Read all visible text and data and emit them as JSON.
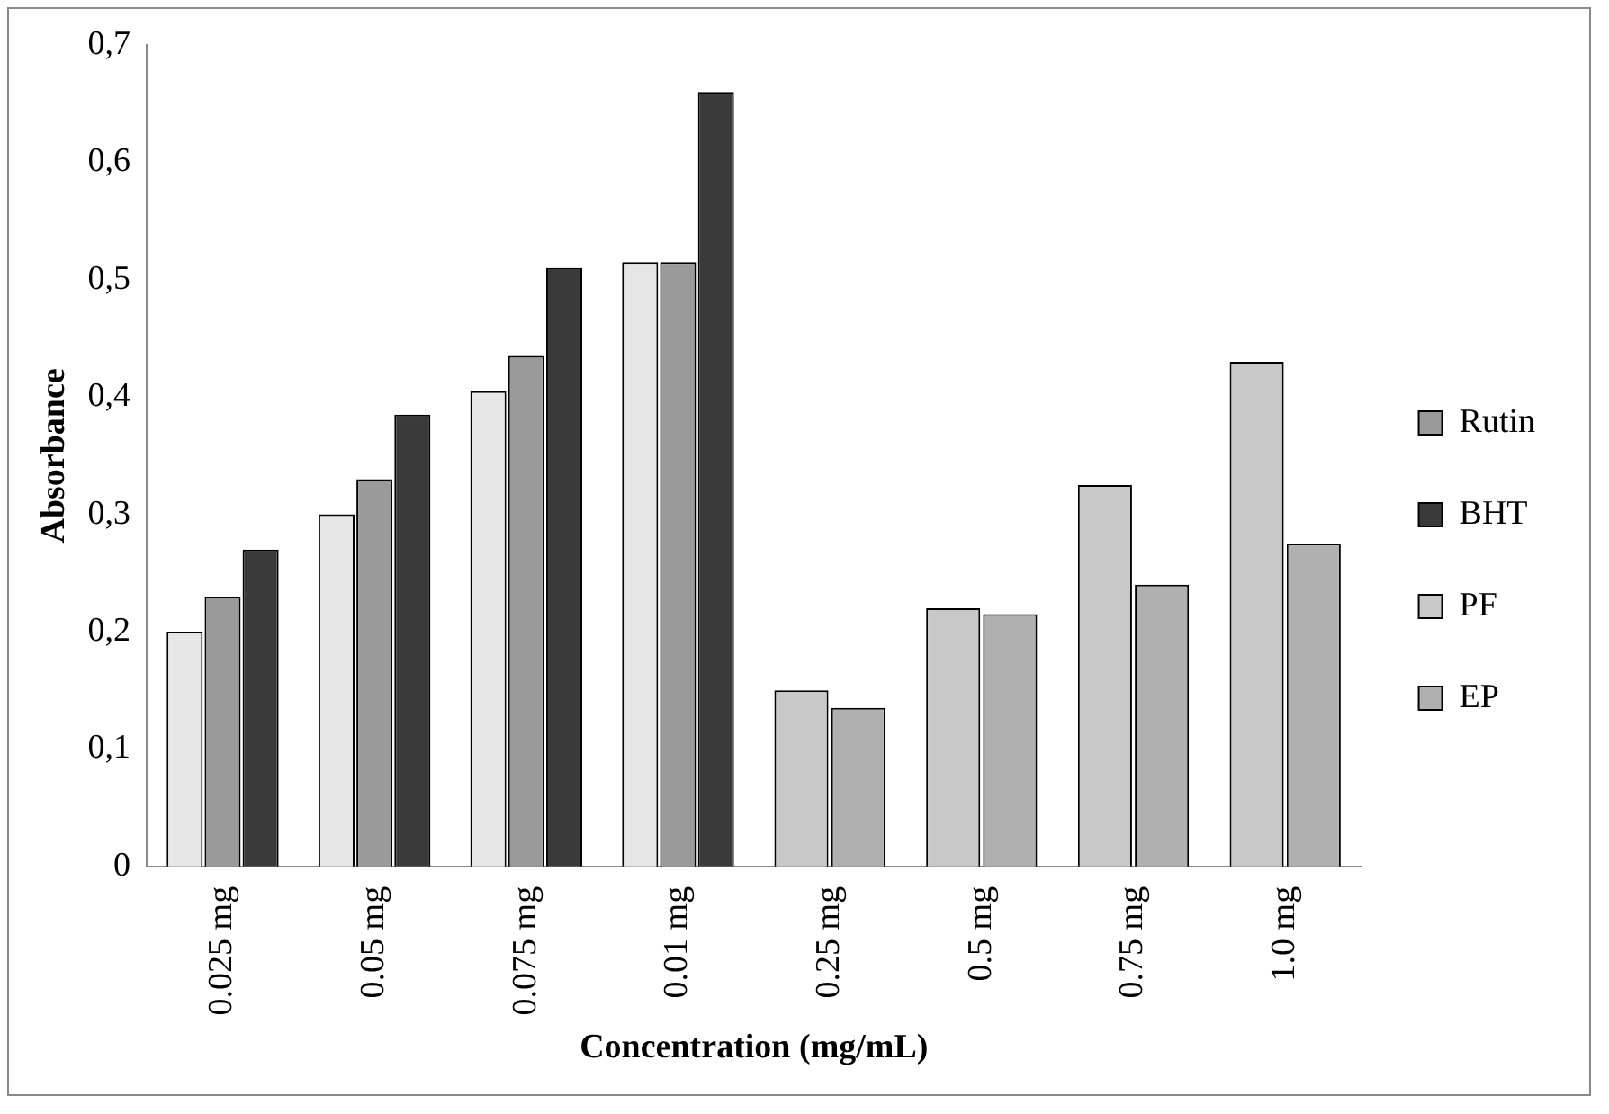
{
  "chart_data": {
    "type": "bar",
    "xlabel": "Concentration (mg/mL)",
    "ylabel": "Absorbance",
    "categories": [
      "0.025 mg",
      "0.05 mg",
      "0.075 mg",
      "0.01 mg",
      "0.25 mg",
      "0.5 mg",
      "0.75 mg",
      "1.0 mg"
    ],
    "series": [
      {
        "color": "#e6e6e6",
        "values": [
          0.2,
          0.3,
          0.405,
          0.515,
          null,
          null,
          null,
          null
        ]
      },
      {
        "name": "Rutin",
        "color": "#9a9a9a",
        "values": [
          0.23,
          0.33,
          0.435,
          0.515,
          null,
          null,
          null,
          null
        ]
      },
      {
        "name": "BHT",
        "color": "#3a3a3a",
        "values": [
          0.27,
          0.385,
          0.51,
          0.66,
          null,
          null,
          null,
          null
        ]
      },
      {
        "name": "PF",
        "color": "#c8c8c8",
        "values": [
          null,
          null,
          null,
          null,
          0.15,
          0.22,
          0.325,
          0.43
        ]
      },
      {
        "name": "EP",
        "color": "#b0b0b0",
        "values": [
          null,
          null,
          null,
          null,
          0.135,
          0.215,
          0.24,
          0.275
        ]
      }
    ],
    "ylim": [
      0,
      0.7
    ],
    "yticks": [
      {
        "value": 0,
        "label": "0"
      },
      {
        "value": 0.1,
        "label": "0,1"
      },
      {
        "value": 0.2,
        "label": "0,2"
      },
      {
        "value": 0.3,
        "label": "0,3"
      },
      {
        "value": 0.4,
        "label": "0,4"
      },
      {
        "value": 0.5,
        "label": "0,5"
      },
      {
        "value": 0.6,
        "label": "0,6"
      },
      {
        "value": 0.7,
        "label": "0,7"
      }
    ],
    "grid": false,
    "legend": "right"
  }
}
